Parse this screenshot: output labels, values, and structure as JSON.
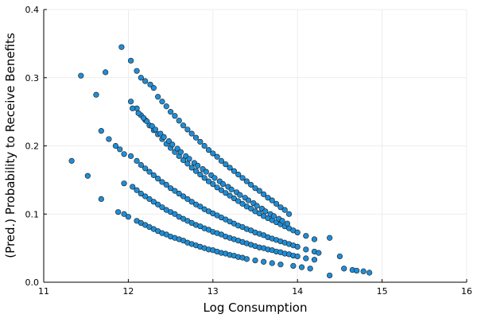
{
  "chart_data": {
    "type": "scatter",
    "xlabel": "Log Consumption",
    "ylabel": "(Pred.) Probability to Receive Benefits",
    "xlim": [
      11,
      16
    ],
    "ylim": [
      0,
      0.4
    ],
    "x_ticks": [
      "11",
      "12",
      "13",
      "14",
      "15",
      "16"
    ],
    "y_ticks": [
      "0.0",
      "0.1",
      "0.2",
      "0.3",
      "0.4"
    ],
    "x_tick_values": [
      11,
      12,
      13,
      14,
      15,
      16
    ],
    "y_tick_values": [
      0,
      0.1,
      0.2,
      0.3,
      0.4
    ],
    "grid": true,
    "legend": "none",
    "marker_color": "#1f8dd6",
    "marker_edge_color": "#1a1a1a",
    "series": [
      {
        "points": [
          [
            11.92,
            0.345
          ],
          [
            12.03,
            0.325
          ],
          [
            12.1,
            0.31
          ],
          [
            12.15,
            0.3
          ],
          [
            12.2,
            0.295
          ],
          [
            12.26,
            0.29
          ],
          [
            12.3,
            0.285
          ],
          [
            12.35,
            0.272
          ],
          [
            12.4,
            0.265
          ],
          [
            12.45,
            0.258
          ],
          [
            12.5,
            0.25
          ],
          [
            12.55,
            0.244
          ],
          [
            12.6,
            0.237
          ],
          [
            12.65,
            0.23
          ],
          [
            12.7,
            0.224
          ],
          [
            12.75,
            0.218
          ],
          [
            12.8,
            0.212
          ],
          [
            12.85,
            0.206
          ],
          [
            12.9,
            0.2
          ],
          [
            12.95,
            0.194
          ],
          [
            13.0,
            0.189
          ],
          [
            13.05,
            0.184
          ],
          [
            13.1,
            0.178
          ],
          [
            13.15,
            0.173
          ],
          [
            13.2,
            0.168
          ],
          [
            13.25,
            0.163
          ],
          [
            13.3,
            0.158
          ],
          [
            13.35,
            0.153
          ],
          [
            13.4,
            0.148
          ],
          [
            13.45,
            0.143
          ],
          [
            13.5,
            0.138
          ],
          [
            13.55,
            0.134
          ],
          [
            13.6,
            0.129
          ],
          [
            13.65,
            0.124
          ],
          [
            13.7,
            0.12
          ],
          [
            13.75,
            0.115
          ],
          [
            13.8,
            0.11
          ],
          [
            13.85,
            0.106
          ],
          [
            13.9,
            0.1
          ]
        ]
      },
      {
        "points": [
          [
            11.73,
            0.308
          ],
          [
            11.62,
            0.275
          ],
          [
            12.03,
            0.265
          ],
          [
            12.1,
            0.255
          ],
          [
            12.15,
            0.245
          ],
          [
            12.2,
            0.238
          ],
          [
            12.25,
            0.23
          ],
          [
            12.3,
            0.223
          ],
          [
            12.35,
            0.217
          ],
          [
            12.4,
            0.21
          ],
          [
            12.45,
            0.203
          ],
          [
            12.5,
            0.197
          ],
          [
            12.55,
            0.191
          ],
          [
            12.6,
            0.185
          ],
          [
            12.65,
            0.179
          ],
          [
            12.7,
            0.174
          ],
          [
            12.75,
            0.168
          ],
          [
            12.8,
            0.163
          ],
          [
            12.85,
            0.158
          ],
          [
            12.9,
            0.153
          ],
          [
            12.95,
            0.148
          ],
          [
            13.0,
            0.144
          ],
          [
            13.05,
            0.139
          ],
          [
            13.1,
            0.135
          ],
          [
            13.15,
            0.131
          ],
          [
            13.2,
            0.127
          ],
          [
            13.25,
            0.123
          ],
          [
            13.3,
            0.119
          ],
          [
            13.35,
            0.115
          ],
          [
            13.4,
            0.111
          ],
          [
            13.45,
            0.108
          ],
          [
            13.5,
            0.104
          ],
          [
            13.55,
            0.101
          ],
          [
            13.6,
            0.097
          ],
          [
            13.65,
            0.094
          ],
          [
            13.7,
            0.091
          ],
          [
            13.75,
            0.088
          ],
          [
            13.8,
            0.085
          ],
          [
            13.85,
            0.082
          ],
          [
            13.9,
            0.079
          ],
          [
            13.95,
            0.076
          ],
          [
            14.0,
            0.073
          ],
          [
            14.1,
            0.068
          ],
          [
            14.2,
            0.063
          ],
          [
            14.38,
            0.065
          ]
        ]
      },
      {
        "points": [
          [
            11.68,
            0.222
          ],
          [
            11.77,
            0.21
          ],
          [
            11.85,
            0.2
          ],
          [
            11.9,
            0.195
          ],
          [
            11.95,
            0.188
          ],
          [
            12.03,
            0.185
          ],
          [
            12.1,
            0.178
          ],
          [
            12.15,
            0.172
          ],
          [
            12.2,
            0.167
          ],
          [
            12.25,
            0.162
          ],
          [
            12.3,
            0.157
          ],
          [
            12.35,
            0.152
          ],
          [
            12.4,
            0.147
          ],
          [
            12.45,
            0.143
          ],
          [
            12.5,
            0.138
          ],
          [
            12.55,
            0.134
          ],
          [
            12.6,
            0.13
          ],
          [
            12.65,
            0.126
          ],
          [
            12.7,
            0.122
          ],
          [
            12.75,
            0.118
          ],
          [
            12.8,
            0.114
          ],
          [
            12.85,
            0.111
          ],
          [
            12.9,
            0.107
          ],
          [
            12.95,
            0.104
          ],
          [
            13.0,
            0.101
          ],
          [
            13.05,
            0.098
          ],
          [
            13.1,
            0.095
          ],
          [
            13.15,
            0.092
          ],
          [
            13.2,
            0.089
          ],
          [
            13.25,
            0.086
          ],
          [
            13.3,
            0.083
          ],
          [
            13.35,
            0.081
          ],
          [
            13.4,
            0.078
          ],
          [
            13.45,
            0.076
          ],
          [
            13.5,
            0.073
          ],
          [
            13.55,
            0.071
          ],
          [
            13.6,
            0.069
          ],
          [
            13.65,
            0.066
          ],
          [
            13.7,
            0.064
          ],
          [
            13.75,
            0.062
          ],
          [
            13.8,
            0.06
          ],
          [
            13.85,
            0.058
          ],
          [
            13.9,
            0.056
          ],
          [
            13.95,
            0.054
          ],
          [
            14.0,
            0.052
          ],
          [
            14.1,
            0.048
          ],
          [
            14.2,
            0.045
          ],
          [
            14.25,
            0.043
          ]
        ]
      },
      {
        "points": [
          [
            11.33,
            0.178
          ],
          [
            11.52,
            0.156
          ],
          [
            11.68,
            0.122
          ],
          [
            11.95,
            0.145
          ],
          [
            12.05,
            0.14
          ],
          [
            12.1,
            0.135
          ],
          [
            12.15,
            0.13
          ],
          [
            12.2,
            0.126
          ],
          [
            12.25,
            0.122
          ],
          [
            12.3,
            0.118
          ],
          [
            12.35,
            0.114
          ],
          [
            12.4,
            0.11
          ],
          [
            12.45,
            0.106
          ],
          [
            12.5,
            0.103
          ],
          [
            12.55,
            0.1
          ],
          [
            12.6,
            0.096
          ],
          [
            12.65,
            0.093
          ],
          [
            12.7,
            0.09
          ],
          [
            12.75,
            0.087
          ],
          [
            12.8,
            0.084
          ],
          [
            12.85,
            0.082
          ],
          [
            12.9,
            0.079
          ],
          [
            12.95,
            0.077
          ],
          [
            13.0,
            0.074
          ],
          [
            13.05,
            0.072
          ],
          [
            13.1,
            0.07
          ],
          [
            13.15,
            0.067
          ],
          [
            13.2,
            0.065
          ],
          [
            13.25,
            0.063
          ],
          [
            13.3,
            0.061
          ],
          [
            13.35,
            0.059
          ],
          [
            13.4,
            0.057
          ],
          [
            13.45,
            0.055
          ],
          [
            13.5,
            0.053
          ],
          [
            13.55,
            0.051
          ],
          [
            13.6,
            0.05
          ],
          [
            13.65,
            0.048
          ],
          [
            13.7,
            0.047
          ],
          [
            13.75,
            0.045
          ],
          [
            13.8,
            0.044
          ],
          [
            13.85,
            0.042
          ],
          [
            13.9,
            0.041
          ],
          [
            13.95,
            0.039
          ],
          [
            14.0,
            0.038
          ],
          [
            14.1,
            0.035
          ],
          [
            14.2,
            0.033
          ],
          [
            14.5,
            0.038
          ]
        ]
      },
      {
        "points": [
          [
            11.88,
            0.103
          ],
          [
            11.95,
            0.1
          ],
          [
            12.0,
            0.096
          ],
          [
            12.1,
            0.09
          ],
          [
            12.15,
            0.087
          ],
          [
            12.2,
            0.084
          ],
          [
            12.25,
            0.081
          ],
          [
            12.3,
            0.078
          ],
          [
            12.35,
            0.075
          ],
          [
            12.4,
            0.072
          ],
          [
            12.45,
            0.07
          ],
          [
            12.5,
            0.067
          ],
          [
            12.55,
            0.065
          ],
          [
            12.6,
            0.063
          ],
          [
            12.65,
            0.061
          ],
          [
            12.7,
            0.058
          ],
          [
            12.75,
            0.056
          ],
          [
            12.8,
            0.054
          ],
          [
            12.85,
            0.052
          ],
          [
            12.9,
            0.05
          ],
          [
            12.95,
            0.048
          ],
          [
            13.0,
            0.047
          ],
          [
            13.05,
            0.045
          ],
          [
            13.1,
            0.043
          ],
          [
            13.15,
            0.042
          ],
          [
            13.2,
            0.04
          ],
          [
            13.25,
            0.039
          ],
          [
            13.3,
            0.037
          ],
          [
            13.35,
            0.036
          ],
          [
            13.4,
            0.034
          ],
          [
            13.5,
            0.032
          ],
          [
            13.6,
            0.03
          ],
          [
            13.7,
            0.028
          ],
          [
            13.8,
            0.026
          ],
          [
            13.95,
            0.024
          ],
          [
            14.05,
            0.022
          ],
          [
            14.15,
            0.02
          ],
          [
            14.38,
            0.01
          ],
          [
            14.55,
            0.02
          ],
          [
            14.65,
            0.018
          ],
          [
            14.7,
            0.017
          ],
          [
            14.78,
            0.016
          ],
          [
            14.85,
            0.014
          ]
        ]
      },
      {
        "points": [
          [
            11.44,
            0.303
          ],
          [
            12.05,
            0.255
          ],
          [
            12.12,
            0.248
          ],
          [
            12.18,
            0.241
          ],
          [
            12.22,
            0.236
          ],
          [
            12.28,
            0.229
          ],
          [
            12.32,
            0.224
          ],
          [
            12.38,
            0.218
          ],
          [
            12.42,
            0.213
          ],
          [
            12.48,
            0.207
          ],
          [
            12.52,
            0.202
          ],
          [
            12.58,
            0.196
          ],
          [
            12.62,
            0.191
          ],
          [
            12.68,
            0.185
          ],
          [
            12.72,
            0.181
          ],
          [
            12.78,
            0.175
          ],
          [
            12.82,
            0.171
          ],
          [
            12.88,
            0.166
          ],
          [
            12.92,
            0.162
          ],
          [
            12.98,
            0.157
          ],
          [
            13.02,
            0.153
          ],
          [
            13.08,
            0.148
          ],
          [
            13.12,
            0.144
          ],
          [
            13.18,
            0.14
          ],
          [
            13.22,
            0.136
          ],
          [
            13.28,
            0.132
          ],
          [
            13.32,
            0.128
          ],
          [
            13.38,
            0.124
          ],
          [
            13.42,
            0.12
          ],
          [
            13.48,
            0.116
          ],
          [
            13.52,
            0.112
          ],
          [
            13.58,
            0.108
          ],
          [
            13.62,
            0.104
          ],
          [
            13.68,
            0.1
          ],
          [
            13.72,
            0.097
          ],
          [
            13.78,
            0.093
          ],
          [
            13.82,
            0.09
          ],
          [
            13.88,
            0.086
          ]
        ]
      }
    ]
  }
}
